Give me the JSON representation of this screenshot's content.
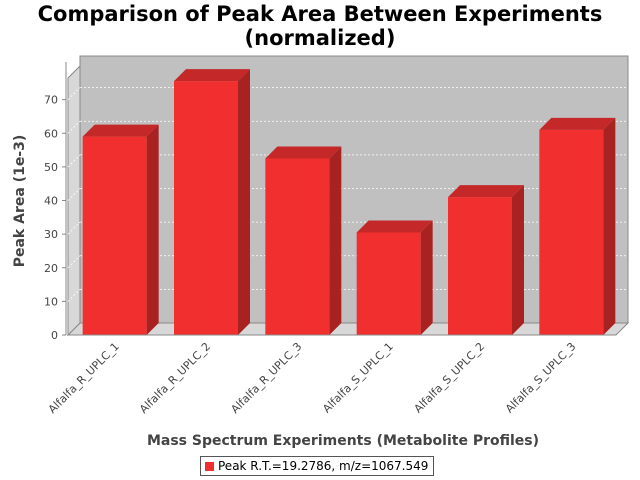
{
  "chart_data": {
    "type": "bar",
    "title_line1": "Comparison of Peak Area Between Experiments",
    "title_line2": "(normalized)",
    "xlabel": "Mass Spectrum Experiments (Metabolite Profiles)",
    "ylabel": "Peak Area (1e-3)",
    "categories": [
      "Alfalfa_R_UPLC_1",
      "Alfalfa_R_UPLC_2",
      "Alfalfa_R_UPLC_3",
      "Alfalfa_S_UPLC_1",
      "Alfalfa_S_UPLC_2",
      "Alfalfa_S_UPLC_3"
    ],
    "series": [
      {
        "name": "Peak R.T.=19.2786, m/z=1067.549",
        "values": [
          59,
          75.5,
          52.5,
          30.5,
          41,
          61
        ]
      }
    ],
    "ylim": [
      0,
      80
    ],
    "yticks": [
      "0",
      "10",
      "20",
      "30",
      "40",
      "50",
      "60",
      "70"
    ],
    "grid": true,
    "legend_position": "bottom",
    "colors": {
      "bar_front": "#f22f2f",
      "bar_top": "#c42828",
      "bar_side": "#a82222",
      "plot_back": "#c0c0c0",
      "plot_floor": "#d8d8d8"
    }
  }
}
